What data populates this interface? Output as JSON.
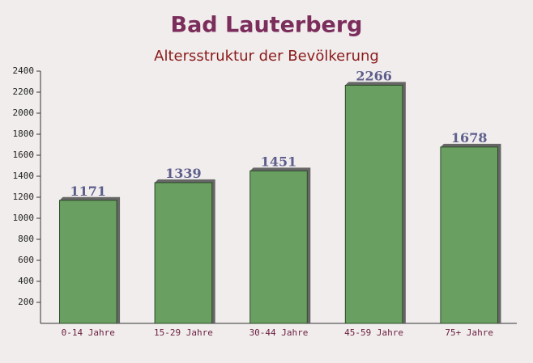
{
  "chart_data": {
    "type": "bar",
    "title": "Bad Lauterberg",
    "subtitle": "Altersstruktur der Bevölkerung",
    "categories": [
      "0-14 Jahre",
      "15-29 Jahre",
      "30-44 Jahre",
      "45-59 Jahre",
      "75+ Jahre"
    ],
    "values": [
      1171,
      1339,
      1451,
      2266,
      1678
    ],
    "color": "#69a062",
    "ylim": [
      0,
      2400
    ],
    "yticks": [
      200,
      400,
      600,
      800,
      1000,
      1200,
      1400,
      1600,
      1800,
      2000,
      2200,
      2400
    ]
  }
}
